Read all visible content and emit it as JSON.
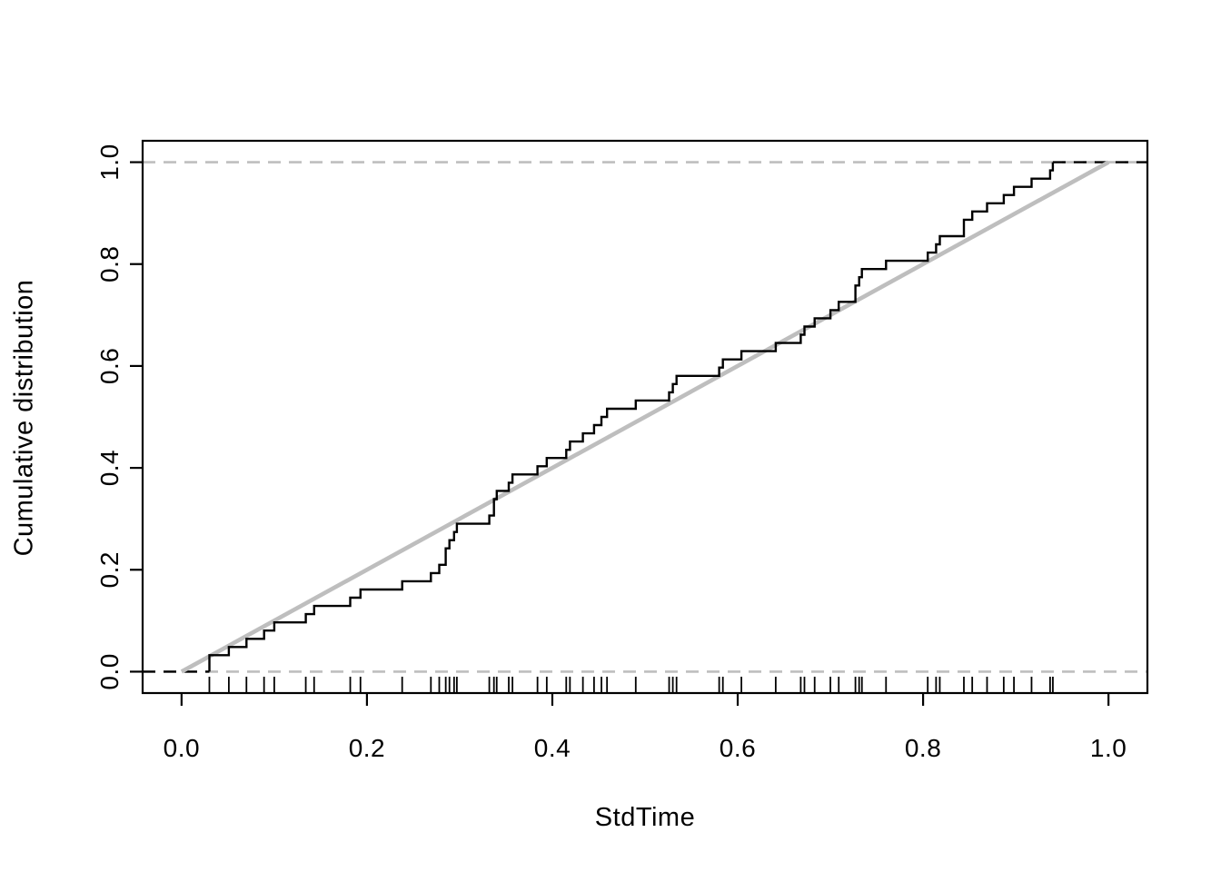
{
  "chart_data": {
    "type": "line",
    "subtype": "ecdf-step-plot",
    "title": "",
    "xlabel": "StdTime",
    "ylabel": "Cumulative distribution",
    "xlim": [
      -0.042,
      1.042
    ],
    "ylim": [
      -0.042,
      1.042
    ],
    "grid": false,
    "legend": "none",
    "background_color": "#ffffff",
    "x_ticks": [
      0.0,
      0.2,
      0.4,
      0.6,
      0.8,
      1.0
    ],
    "x_tick_labels": [
      "0.0",
      "0.2",
      "0.4",
      "0.6",
      "0.8",
      "1.0"
    ],
    "y_ticks": [
      0.0,
      0.2,
      0.4,
      0.6,
      0.8,
      1.0
    ],
    "y_tick_labels": [
      "0.0",
      "0.2",
      "0.4",
      "0.6",
      "0.8",
      "1.0"
    ],
    "series": [
      {
        "name": "empirical-cumulative-distribution",
        "type": "step",
        "color": "#000000",
        "n": 62,
        "sample_x": [
          0.03,
          0.03,
          0.051,
          0.07,
          0.089,
          0.1,
          0.134,
          0.143,
          0.182,
          0.193,
          0.238,
          0.269,
          0.278,
          0.285,
          0.285,
          0.289,
          0.294,
          0.297,
          0.332,
          0.337,
          0.337,
          0.34,
          0.353,
          0.357,
          0.384,
          0.394,
          0.415,
          0.419,
          0.433,
          0.445,
          0.453,
          0.459,
          0.49,
          0.526,
          0.53,
          0.534,
          0.58,
          0.584,
          0.604,
          0.641,
          0.668,
          0.672,
          0.683,
          0.7,
          0.709,
          0.727,
          0.727,
          0.731,
          0.734,
          0.76,
          0.805,
          0.814,
          0.818,
          0.844,
          0.844,
          0.853,
          0.869,
          0.887,
          0.898,
          0.917,
          0.937,
          0.94
        ]
      },
      {
        "name": "uniform-reference-diagonal",
        "type": "line",
        "color": "#bebebe",
        "x": [
          0,
          1
        ],
        "y": [
          0,
          1
        ]
      },
      {
        "name": "limit-lines",
        "type": "hline",
        "style": "dashed",
        "color": "#bfbfbf",
        "y": [
          0,
          1
        ]
      },
      {
        "name": "ecdf-tail-extensions",
        "type": "hline-segment",
        "style": "dashed",
        "color": "#000000",
        "left_y": 0,
        "right_y": 1
      }
    ],
    "rug": {
      "side": "bottom",
      "uses_series": "empirical-cumulative-distribution"
    }
  }
}
